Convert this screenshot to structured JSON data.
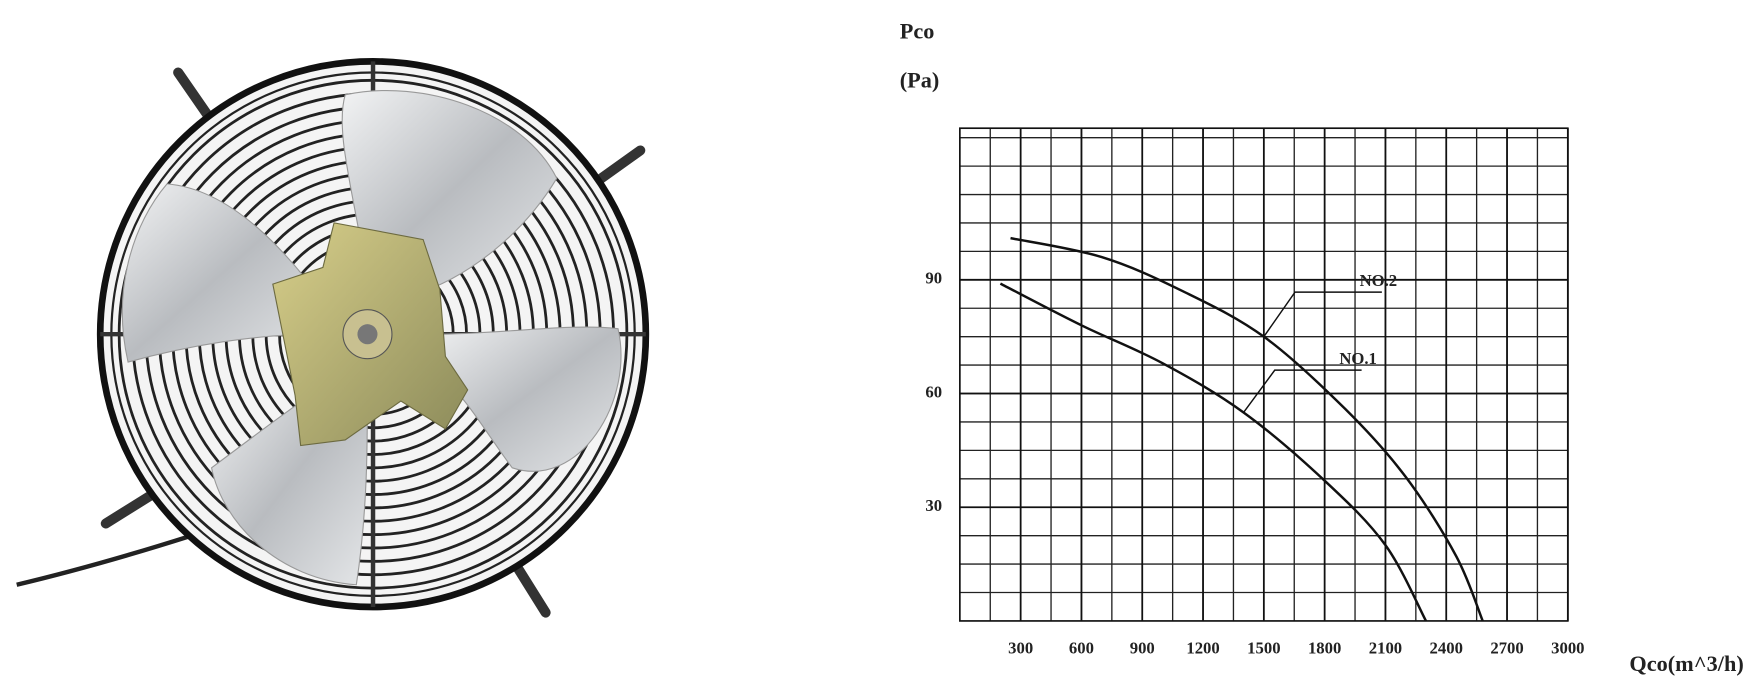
{
  "chart_data": {
    "type": "line",
    "ylabel": [
      "Pco",
      "(Pa)"
    ],
    "xlabel": "Qco(m^3/h)",
    "xlim": [
      0,
      3000
    ],
    "ylim": [
      0,
      130
    ],
    "xticks": [
      300,
      600,
      900,
      1200,
      1500,
      1800,
      2100,
      2400,
      2700,
      3000
    ],
    "yticks": [
      30,
      60,
      90
    ],
    "grid": true,
    "series": [
      {
        "name": "NO.1",
        "color": "#111111",
        "x": [
          200,
          600,
          1000,
          1400,
          1800,
          2100,
          2300
        ],
        "values": [
          89,
          78,
          68,
          55,
          37,
          20,
          0
        ]
      },
      {
        "name": "NO.2",
        "color": "#111111",
        "x": [
          250,
          700,
          1100,
          1500,
          1900,
          2200,
          2450,
          2580
        ],
        "values": [
          101,
          96,
          87,
          75,
          56,
          38,
          17,
          0
        ]
      }
    ]
  }
}
